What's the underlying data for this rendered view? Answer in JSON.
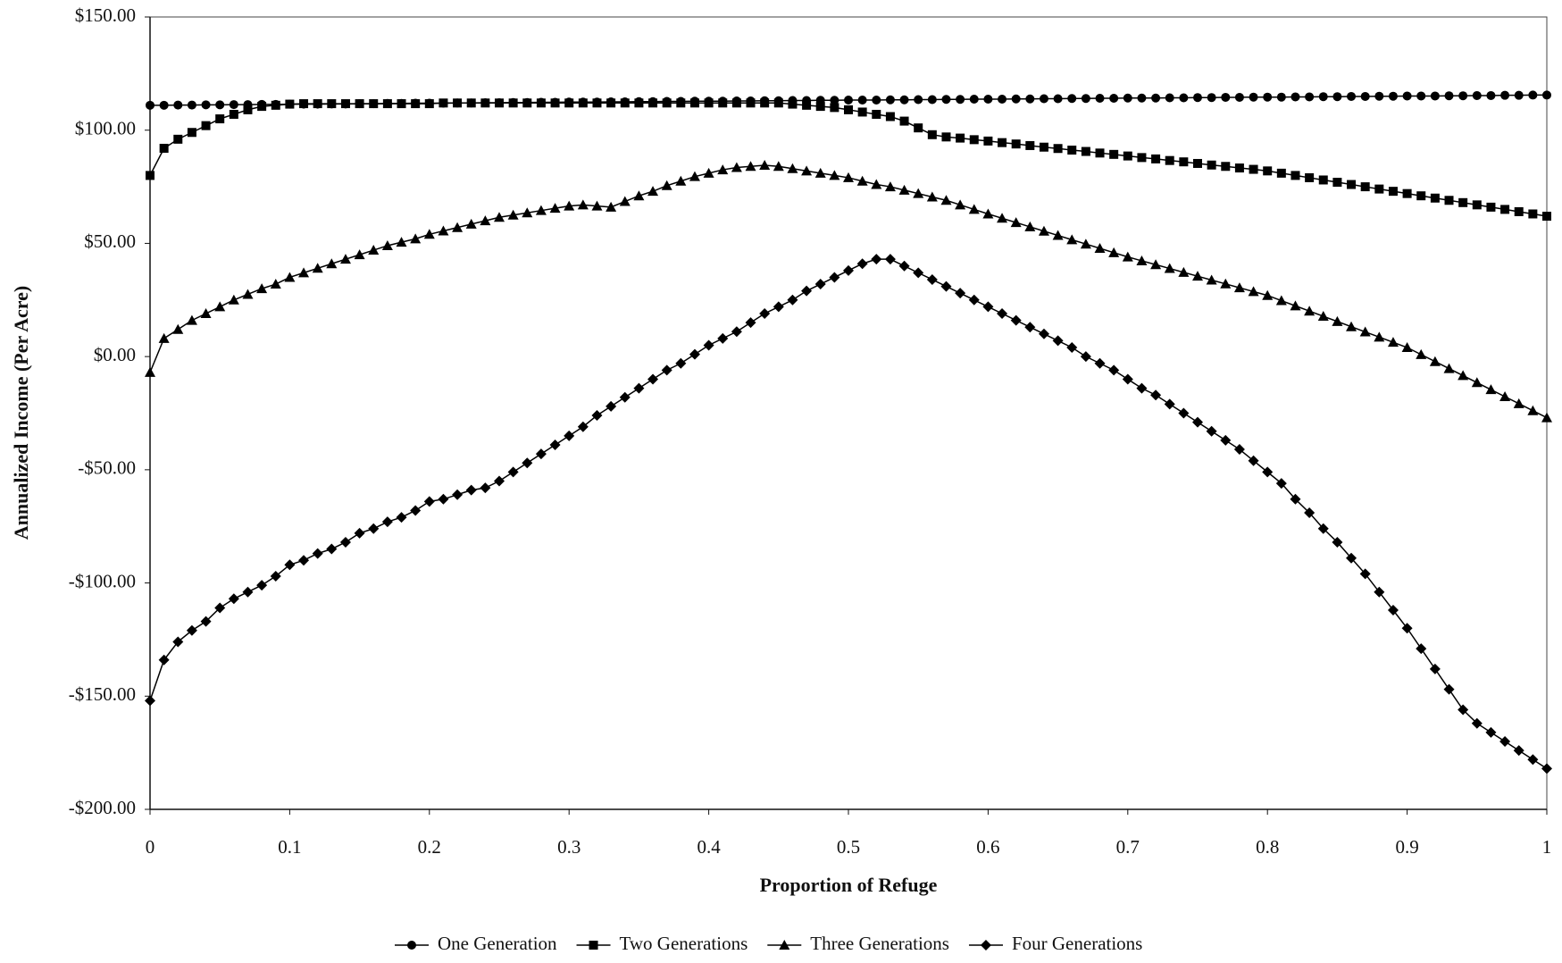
{
  "chart_data": {
    "type": "line",
    "x_label": "Proportion of Refuge",
    "y_label": "Annualized Income (Per Acre)",
    "xlim": [
      0,
      1
    ],
    "ylim": [
      -200,
      150
    ],
    "xticks": [
      0,
      0.1,
      0.2,
      0.3,
      0.4,
      0.5,
      0.6,
      0.7,
      0.8,
      0.9,
      1
    ],
    "yticks": [
      {
        "value": -200,
        "label": "-$200.00"
      },
      {
        "value": -150,
        "label": "-$150.00"
      },
      {
        "value": -100,
        "label": "-$100.00"
      },
      {
        "value": -50,
        "label": "-$50.00"
      },
      {
        "value": 0,
        "label": "$0.00"
      },
      {
        "value": 50,
        "label": "$50.00"
      },
      {
        "value": 100,
        "label": "$100.00"
      },
      {
        "value": 150,
        "label": "$150.00"
      }
    ],
    "grid": false,
    "legend": "bottom",
    "x": [
      0,
      0.01,
      0.02,
      0.03,
      0.04,
      0.05,
      0.06,
      0.07,
      0.08,
      0.09,
      0.1,
      0.11,
      0.12,
      0.13,
      0.14,
      0.15,
      0.16,
      0.17,
      0.18,
      0.19,
      0.2,
      0.21,
      0.22,
      0.23,
      0.24,
      0.25,
      0.26,
      0.27,
      0.28,
      0.29,
      0.3,
      0.31,
      0.32,
      0.33,
      0.34,
      0.35,
      0.36,
      0.37,
      0.38,
      0.39,
      0.4,
      0.41,
      0.42,
      0.43,
      0.44,
      0.45,
      0.46,
      0.47,
      0.48,
      0.49,
      0.5,
      0.51,
      0.52,
      0.53,
      0.54,
      0.55,
      0.56,
      0.57,
      0.58,
      0.59,
      0.6,
      0.61,
      0.62,
      0.63,
      0.64,
      0.65,
      0.66,
      0.67,
      0.68,
      0.69,
      0.7,
      0.71,
      0.72,
      0.73,
      0.74,
      0.75,
      0.76,
      0.77,
      0.78,
      0.79,
      0.8,
      0.81,
      0.82,
      0.83,
      0.84,
      0.85,
      0.86,
      0.87,
      0.88,
      0.89,
      0.9,
      0.91,
      0.92,
      0.93,
      0.94,
      0.95,
      0.96,
      0.97,
      0.98,
      0.99,
      1
    ],
    "series": [
      {
        "name": "One Generation",
        "color": "#000000",
        "marker": "circle",
        "values": [
          111.0,
          111.0,
          111.1,
          111.1,
          111.2,
          111.2,
          111.3,
          111.3,
          111.4,
          111.4,
          111.5,
          111.5,
          111.5,
          111.6,
          111.6,
          111.7,
          111.7,
          111.8,
          111.8,
          111.9,
          111.9,
          111.9,
          112.0,
          112.0,
          112.1,
          112.1,
          112.2,
          112.2,
          112.3,
          112.3,
          112.4,
          112.4,
          112.4,
          112.5,
          112.5,
          112.6,
          112.6,
          112.7,
          112.7,
          112.8,
          112.8,
          112.8,
          112.9,
          112.9,
          113.0,
          113.0,
          113.1,
          113.1,
          113.2,
          113.2,
          113.3,
          113.3,
          113.3,
          113.4,
          113.4,
          113.5,
          113.5,
          113.6,
          113.6,
          113.7,
          113.7,
          113.7,
          113.8,
          113.8,
          113.9,
          113.9,
          114.0,
          114.0,
          114.1,
          114.1,
          114.2,
          114.2,
          114.2,
          114.3,
          114.3,
          114.4,
          114.4,
          114.5,
          114.5,
          114.6,
          114.6,
          114.6,
          114.7,
          114.7,
          114.8,
          114.8,
          114.9,
          114.9,
          115.0,
          115.0,
          115.1,
          115.1,
          115.1,
          115.2,
          115.2,
          115.3,
          115.3,
          115.4,
          115.4,
          115.5,
          115.5
        ]
      },
      {
        "name": "Two Generations",
        "color": "#000000",
        "marker": "square",
        "values": [
          80,
          92,
          96,
          99,
          102,
          105,
          107,
          109,
          110.5,
          111,
          111.5,
          111.7,
          111.7,
          111.7,
          111.7,
          111.7,
          111.7,
          111.7,
          111.7,
          111.7,
          111.7,
          112,
          112,
          112,
          112,
          112,
          112,
          112,
          112,
          112,
          112,
          112,
          112,
          112,
          112,
          112,
          112,
          112,
          112,
          112,
          112,
          112,
          112,
          112,
          112,
          112,
          111.5,
          111,
          110.5,
          110,
          109,
          108,
          107,
          106,
          104,
          101,
          98,
          97,
          96.5,
          95.8,
          95.2,
          94.5,
          93.9,
          93.2,
          92.5,
          91.9,
          91.2,
          90.6,
          89.9,
          89.3,
          88.6,
          87.9,
          87.3,
          86.6,
          86.0,
          85.3,
          84.6,
          84.0,
          83.3,
          82.7,
          82,
          81,
          80,
          79,
          78,
          77,
          76,
          75,
          74,
          73,
          72,
          71,
          70,
          69,
          68,
          67,
          66,
          65,
          64,
          63,
          62
        ]
      },
      {
        "name": "Three Generations",
        "color": "#000000",
        "marker": "triangle",
        "values": [
          -7,
          8,
          12,
          16,
          19,
          22,
          25,
          27.5,
          30,
          32,
          35,
          37,
          39,
          41,
          43,
          45,
          47,
          49,
          50.5,
          52,
          54,
          55.5,
          57,
          58.5,
          60,
          61.5,
          62.5,
          63.5,
          64.5,
          65.5,
          66.5,
          67,
          66.5,
          66,
          68.5,
          71,
          73,
          75.5,
          77.5,
          79.5,
          81,
          82.5,
          83.5,
          84,
          84.5,
          84,
          83,
          82,
          81,
          80,
          79,
          77.5,
          76,
          75,
          73.5,
          72,
          70.5,
          69,
          67,
          65,
          63,
          61.1,
          59.2,
          57.3,
          55.4,
          53.5,
          51.6,
          49.7,
          47.8,
          45.9,
          44,
          42.3,
          40.6,
          38.9,
          37.2,
          35.5,
          33.8,
          32.1,
          30.4,
          28.7,
          27,
          24.7,
          22.4,
          20.1,
          17.8,
          15.5,
          13.2,
          10.9,
          8.6,
          6.3,
          4,
          0.9,
          -2.2,
          -5.3,
          -8.4,
          -11.5,
          -14.6,
          -17.7,
          -20.8,
          -23.9,
          -27
        ]
      },
      {
        "name": "Four Generations",
        "color": "#000000",
        "marker": "diamond",
        "values": [
          -152,
          -134,
          -126,
          -121,
          -117,
          -111,
          -107,
          -104,
          -101,
          -97,
          -92,
          -90,
          -87,
          -85,
          -82,
          -78,
          -76,
          -73,
          -71,
          -68,
          -64,
          -63,
          -61,
          -59,
          -58,
          -55,
          -51,
          -47,
          -43,
          -39,
          -35,
          -31,
          -26,
          -22,
          -18,
          -14,
          -10,
          -6,
          -3,
          1,
          5,
          8,
          11,
          15,
          19,
          22,
          25,
          29,
          32,
          35,
          38,
          41,
          43,
          43,
          40,
          37,
          34,
          31,
          28,
          25,
          22,
          19,
          16,
          13,
          10,
          7,
          4,
          0,
          -3,
          -6,
          -10,
          -14,
          -17,
          -21,
          -25,
          -29,
          -33,
          -37,
          -41,
          -46,
          -51,
          -56,
          -63,
          -69,
          -76,
          -82,
          -89,
          -96,
          -104,
          -112,
          -120,
          -129,
          -138,
          -147,
          -156,
          -162,
          -166,
          -170,
          -174,
          -178,
          -182
        ]
      }
    ]
  }
}
